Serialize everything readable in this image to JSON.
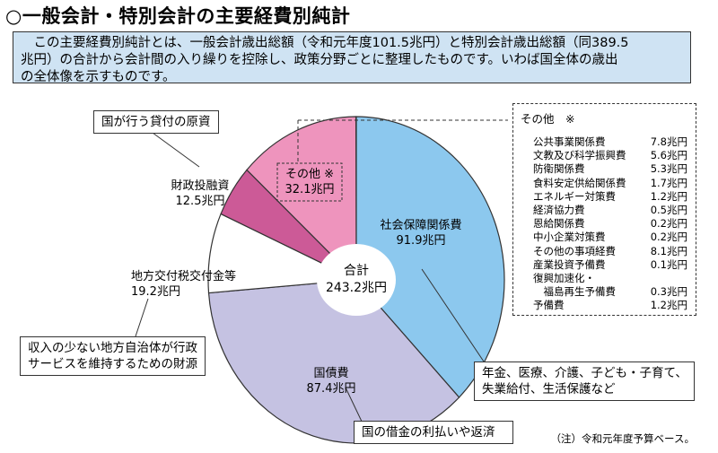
{
  "title": "○一般会計・特別会計の主要経費別純計",
  "intro": {
    "lines": [
      "　この主要経費別純計とは、一般会計歳出総額（令和元年度101.5兆円）と特別会計歳出総額（同389.5",
      "兆円）の合計から会計間の入り繰りを控除し、政策分野ごとに整理したものです。いわば国全体の歳出",
      "の全体像を示すものです。"
    ]
  },
  "chart_data": {
    "type": "pie",
    "center_label": "合計",
    "center_value": "243.2兆円",
    "total": 243.2,
    "slices": [
      {
        "name": "社会保障関係費",
        "value": 91.9,
        "label": "91.9兆円",
        "color": "#8cc8ee"
      },
      {
        "name": "国債費",
        "value": 87.4,
        "label": "87.4兆円",
        "color": "#c5c2e2"
      },
      {
        "name": "地方交付税交付金等",
        "value": 19.2,
        "label": "19.2兆円",
        "color": "#ffffff"
      },
      {
        "name": "財政投融資",
        "value": 12.5,
        "label": "12.5兆円",
        "color": "#cc5a97"
      },
      {
        "name": "その他 ※",
        "value": 32.1,
        "label": "32.1兆円",
        "color": "#ee94bd"
      }
    ]
  },
  "callouts": {
    "loan": "国が行う貸付の原資",
    "local": [
      "収入の少ない地方自治体が行政",
      "サービスを維持するための財源"
    ],
    "social": [
      "年金、医療、介護、子ども・子育て、",
      "失業給付、生活保護など"
    ],
    "debt": "国の借金の利払いや返済"
  },
  "other_breakdown": {
    "heading": "その他　※",
    "items": [
      {
        "name": "公共事業関係費",
        "value": "7.8兆円"
      },
      {
        "name": "文教及び科学振興費",
        "value": "5.6兆円"
      },
      {
        "name": "防衛関係費",
        "value": "5.3兆円"
      },
      {
        "name": "食料安定供給関係費",
        "value": "1.7兆円"
      },
      {
        "name": "エネルギー対策費",
        "value": "1.2兆円"
      },
      {
        "name": "経済協力費",
        "value": "0.5兆円"
      },
      {
        "name": "恩給関係費",
        "value": "0.2兆円"
      },
      {
        "name": "中小企業対策費",
        "value": "0.2兆円"
      },
      {
        "name": "その他の事項経費",
        "value": "8.1兆円"
      },
      {
        "name": "産業投資予備費",
        "value": "0.1兆円"
      },
      {
        "name": "復興加速化・",
        "value": ""
      },
      {
        "name": "　福島再生予備費",
        "value": "0.3兆円"
      },
      {
        "name": "予備費",
        "value": "1.2兆円"
      }
    ]
  },
  "footnote": "（注）令和元年度予算ベース。"
}
